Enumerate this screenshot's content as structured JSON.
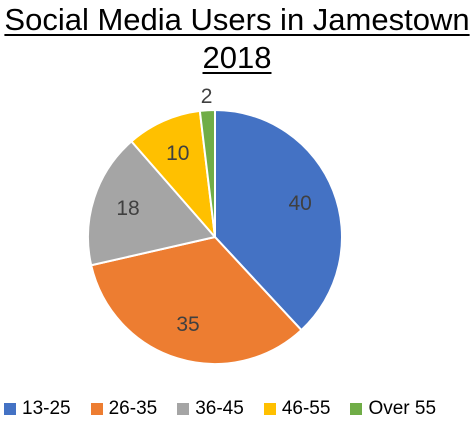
{
  "chart_data": {
    "type": "pie",
    "title": "Social Media Users in Jamestown 2018",
    "title_lines": [
      "Social Media Users in Jamestown",
      "2018"
    ],
    "categories": [
      "13-25",
      "26-35",
      "36-45",
      "46-55",
      "Over 55"
    ],
    "values": [
      40,
      35,
      18,
      10,
      2
    ],
    "colors": [
      "#4472C4",
      "#ED7D31",
      "#A5A5A5",
      "#FFC000",
      "#70AD47"
    ],
    "data_labels": [
      "40",
      "35",
      "18",
      "10",
      "2"
    ],
    "legend_position": "bottom",
    "start_angle": "12 o'clock",
    "direction": "clockwise"
  }
}
